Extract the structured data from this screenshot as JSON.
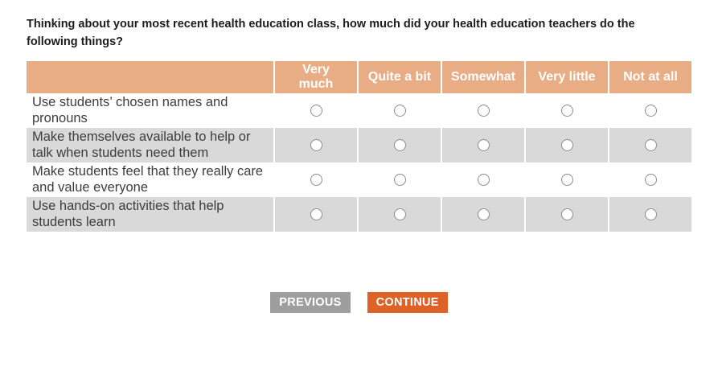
{
  "question": {
    "title": "Thinking about your most recent health education class, how much did your health education teachers do the following things?"
  },
  "matrix": {
    "columns": [
      "Very\nmuch",
      "Quite a bit",
      "Somewhat",
      "Very little",
      "Not at all"
    ],
    "rows": [
      {
        "label": "Use students’ chosen names and pronouns",
        "selected": null
      },
      {
        "label": "Make themselves available to help or talk when students need them",
        "selected": null
      },
      {
        "label": "Make students feel that they really care and value everyone",
        "selected": null
      },
      {
        "label": "Use hands-on activities that help students learn",
        "selected": null
      }
    ]
  },
  "buttons": {
    "previous": "PREVIOUS",
    "continue": "CONTINUE"
  },
  "colors": {
    "header_bg": "#E9AD85",
    "header_text": "#FFFFFF",
    "row_bg": "#FFFFFF",
    "alt_row_bg": "#D9D9D9",
    "label_text": "#3D3D3D",
    "title_text": "#1C1C1C",
    "radio_border": "#8C8C8C",
    "previous_bg": "#9E9E9E",
    "continue_bg": "#DE6228"
  }
}
